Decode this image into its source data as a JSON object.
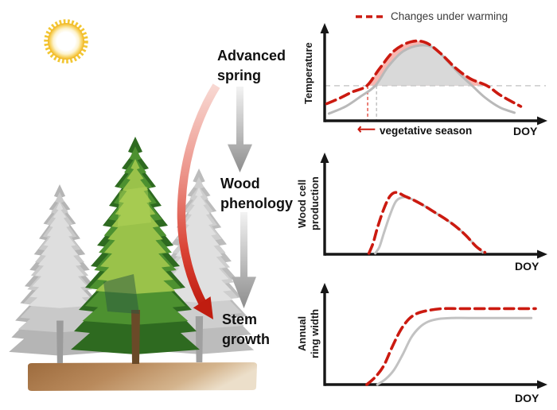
{
  "legend": {
    "label": "Changes under warming",
    "color": "#cb1a10"
  },
  "flow": {
    "steps": [
      {
        "label": "Advanced\nspring"
      },
      {
        "label": "Wood\nphenology"
      },
      {
        "label": "Stem\ngrowth"
      }
    ]
  },
  "icons": {
    "left_arrow": "⟵"
  },
  "scene": {
    "elements": [
      "sun",
      "gray conifer left",
      "green conifer center",
      "gray conifer right",
      "soil strip"
    ],
    "sun_color": "#f0b31b",
    "soil_color": "#a9713f",
    "tree_green": "#4d9130",
    "tree_gray": "#bdbdbd"
  },
  "chart_data": [
    {
      "id": "temperature",
      "type": "line",
      "ylabel": "Temperature",
      "xlabel": "DOY",
      "annotation": "vegetative season",
      "threshold_pct": 39,
      "series": [
        {
          "name": "current",
          "color": "#b9b9b9",
          "style": "solid",
          "width": 3,
          "points": [
            [
              2,
              8
            ],
            [
              10,
              16
            ],
            [
              17,
              27
            ],
            [
              24,
              39
            ],
            [
              30,
              60
            ],
            [
              37,
              77
            ],
            [
              45,
              84
            ],
            [
              52,
              81
            ],
            [
              58,
              67
            ],
            [
              64,
              52
            ],
            [
              70,
              39
            ],
            [
              76,
              26
            ],
            [
              83,
              15
            ],
            [
              90,
              9
            ]
          ]
        },
        {
          "name": "changes under warming",
          "color": "#cb1a10",
          "style": "dashed",
          "width": 3.6,
          "points": [
            [
              1,
              19
            ],
            [
              7,
              25
            ],
            [
              13,
              32
            ],
            [
              20,
              39
            ],
            [
              26,
              58
            ],
            [
              33,
              78
            ],
            [
              41,
              88
            ],
            [
              48,
              87
            ],
            [
              55,
              75
            ],
            [
              62,
              59
            ],
            [
              69,
              47
            ],
            [
              77,
              39
            ],
            [
              83,
              29
            ],
            [
              89,
              21
            ],
            [
              93,
              16
            ]
          ]
        }
      ],
      "fills": [
        {
          "series": "changes under warming",
          "color": "#f7b6b0",
          "clip": true
        },
        {
          "series": "current",
          "color": "#d9d9d9",
          "clip": true
        }
      ],
      "vlines": [
        {
          "x": 20.4,
          "color": "#e2473c"
        },
        {
          "x": 24.6,
          "color": "#bdbdbd"
        }
      ]
    },
    {
      "id": "wood-cell-production",
      "type": "line",
      "ylabel": "Wood cell\nproduction",
      "xlabel": "DOY",
      "series": [
        {
          "name": "current",
          "color": "#c2c2c2",
          "style": "solid",
          "width": 3,
          "points": [
            [
              24,
              1
            ],
            [
              26,
              8
            ],
            [
              28,
              22
            ],
            [
              31,
              42
            ],
            [
              34,
              57
            ],
            [
              38,
              61
            ],
            [
              42,
              58
            ],
            [
              47,
              52
            ],
            [
              52,
              45
            ],
            [
              57,
              38
            ],
            [
              62,
              30
            ],
            [
              67,
              20
            ],
            [
              72,
              8
            ],
            [
              75,
              2
            ]
          ]
        },
        {
          "name": "changes under warming",
          "color": "#cb1a10",
          "style": "dashed",
          "width": 3.6,
          "points": [
            [
              21,
              1
            ],
            [
              23,
              12
            ],
            [
              25,
              28
            ],
            [
              28,
              48
            ],
            [
              31,
              62
            ],
            [
              34,
              66
            ],
            [
              38,
              62
            ],
            [
              42,
              58
            ],
            [
              47,
              52
            ],
            [
              52,
              45
            ],
            [
              57,
              38
            ],
            [
              62,
              30
            ],
            [
              67,
              20
            ],
            [
              72,
              8
            ],
            [
              76,
              2
            ]
          ]
        }
      ]
    },
    {
      "id": "annual-ring-width",
      "type": "line",
      "ylabel": "Annual\nring width",
      "xlabel": "DOY",
      "series": [
        {
          "name": "current",
          "color": "#c2c2c2",
          "style": "solid",
          "width": 3,
          "points": [
            [
              25,
              0
            ],
            [
              29,
              6
            ],
            [
              33,
              16
            ],
            [
              37,
              32
            ],
            [
              41,
              50
            ],
            [
              45,
              61
            ],
            [
              49,
              67
            ],
            [
              54,
              70
            ],
            [
              60,
              71
            ],
            [
              68,
              71
            ],
            [
              80,
              71
            ],
            [
              98,
              71
            ]
          ]
        },
        {
          "name": "changes under warming",
          "color": "#cb1a10",
          "style": "dashed",
          "width": 3.6,
          "points": [
            [
              20,
              0
            ],
            [
              24,
              8
            ],
            [
              28,
              20
            ],
            [
              32,
              40
            ],
            [
              36,
              58
            ],
            [
              40,
              70
            ],
            [
              44,
              76
            ],
            [
              49,
              79
            ],
            [
              56,
              81
            ],
            [
              64,
              81
            ],
            [
              75,
              81
            ],
            [
              88,
              81
            ],
            [
              100,
              81
            ]
          ]
        }
      ]
    }
  ]
}
